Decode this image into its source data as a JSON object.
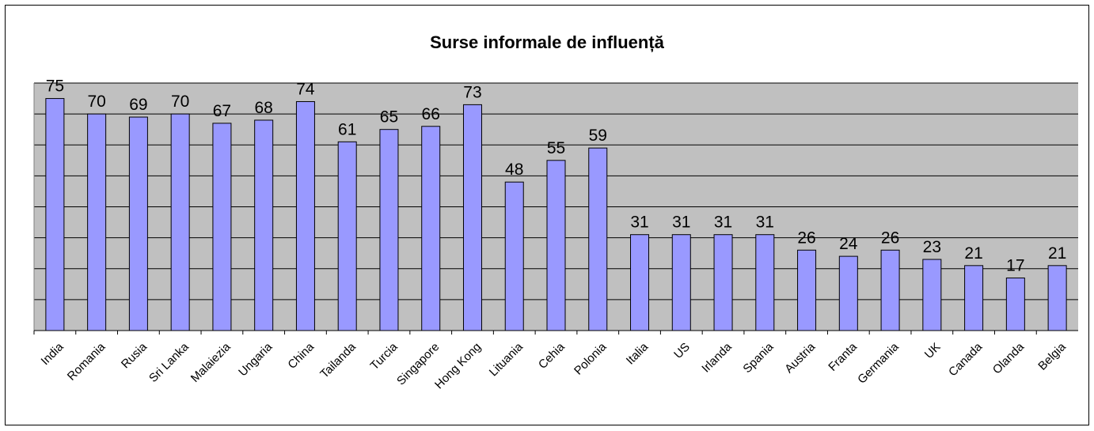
{
  "chart_data": {
    "type": "bar",
    "title": "Surse informale de influență",
    "categories": [
      "India",
      "Romania",
      "Rusia",
      "Sri Lanka",
      "Malaiezia",
      "Ungaria",
      "China",
      "Tailanda",
      "Turcia",
      "Singapore",
      "Hong Kong",
      "Lituania",
      "Cehia",
      "Polonia",
      "Italia",
      "US",
      "Irlanda",
      "Spania",
      "Austria",
      "Franta",
      "Germania",
      "UK",
      "Canada",
      "Olanda",
      "Belgia"
    ],
    "values": [
      75,
      70,
      69,
      70,
      67,
      68,
      74,
      61,
      65,
      66,
      73,
      48,
      55,
      59,
      31,
      31,
      31,
      31,
      26,
      24,
      26,
      23,
      21,
      17,
      21
    ],
    "color": "#9999ff",
    "ylim": [
      0,
      80
    ],
    "yticks": [
      0,
      10,
      20,
      30,
      40,
      50,
      60,
      70,
      80
    ],
    "grid": true
  }
}
